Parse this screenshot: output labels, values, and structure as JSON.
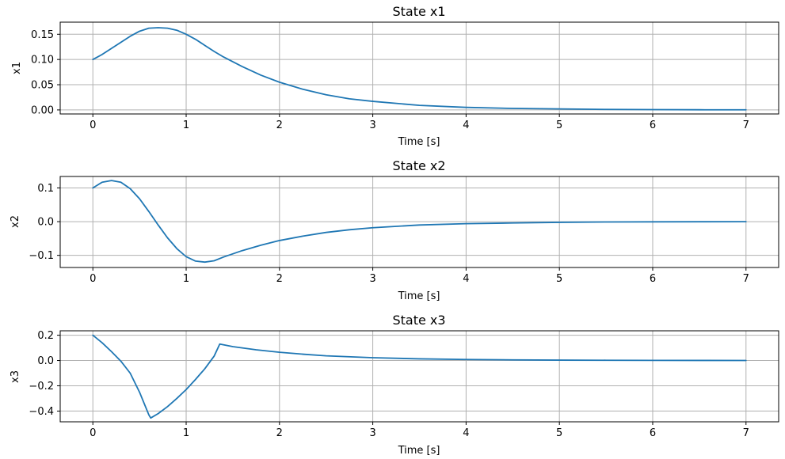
{
  "chart_data": [
    {
      "type": "line",
      "title": "State x1",
      "xlabel": "Time [s]",
      "ylabel": "x1",
      "xlim": [
        -0.35,
        7.35
      ],
      "ylim": [
        -0.008,
        0.174
      ],
      "xticks": [
        0,
        1,
        2,
        3,
        4,
        5,
        6,
        7
      ],
      "xtick_labels": [
        "0",
        "1",
        "2",
        "3",
        "4",
        "5",
        "6",
        "7"
      ],
      "yticks": [
        0.0,
        0.05,
        0.1,
        0.15
      ],
      "ytick_labels": [
        "0.00",
        "0.05",
        "0.10",
        "0.15"
      ],
      "grid": true,
      "color": "#1f77b4",
      "series": [
        {
          "x": [
            0,
            0.1,
            0.2,
            0.3,
            0.4,
            0.5,
            0.6,
            0.7,
            0.8,
            0.9,
            1.0,
            1.1,
            1.2,
            1.3,
            1.4,
            1.6,
            1.8,
            2.0,
            2.25,
            2.5,
            2.75,
            3.0,
            3.5,
            4.0,
            4.5,
            5.0,
            5.5,
            6.0,
            6.5,
            7.0
          ],
          "y": [
            0.1,
            0.11,
            0.122,
            0.134,
            0.146,
            0.156,
            0.162,
            0.163,
            0.162,
            0.158,
            0.15,
            0.14,
            0.128,
            0.116,
            0.105,
            0.086,
            0.069,
            0.055,
            0.041,
            0.03,
            0.022,
            0.017,
            0.009,
            0.005,
            0.003,
            0.002,
            0.001,
            0.0006,
            0.0003,
            0.0002
          ]
        }
      ]
    },
    {
      "type": "line",
      "title": "State x2",
      "xlabel": "Time [s]",
      "ylabel": "x2",
      "xlim": [
        -0.35,
        7.35
      ],
      "ylim": [
        -0.136,
        0.134
      ],
      "xticks": [
        0,
        1,
        2,
        3,
        4,
        5,
        6,
        7
      ],
      "xtick_labels": [
        "0",
        "1",
        "2",
        "3",
        "4",
        "5",
        "6",
        "7"
      ],
      "yticks": [
        -0.1,
        0.0,
        0.1
      ],
      "ytick_labels": [
        "−0.1",
        "0.0",
        "0.1"
      ],
      "grid": true,
      "color": "#1f77b4",
      "series": [
        {
          "x": [
            0,
            0.1,
            0.2,
            0.3,
            0.4,
            0.5,
            0.6,
            0.7,
            0.8,
            0.9,
            1.0,
            1.1,
            1.2,
            1.3,
            1.4,
            1.6,
            1.8,
            2.0,
            2.25,
            2.5,
            2.75,
            3.0,
            3.5,
            4.0,
            4.5,
            5.0,
            5.5,
            6.0,
            6.5,
            7.0
          ],
          "y": [
            0.1,
            0.117,
            0.122,
            0.117,
            0.098,
            0.068,
            0.03,
            -0.01,
            -0.048,
            -0.08,
            -0.104,
            -0.117,
            -0.12,
            -0.116,
            -0.105,
            -0.086,
            -0.07,
            -0.056,
            -0.043,
            -0.032,
            -0.024,
            -0.018,
            -0.01,
            -0.006,
            -0.004,
            -0.002,
            -0.001,
            -0.0006,
            -0.0003,
            -0.0002
          ]
        }
      ]
    },
    {
      "type": "line",
      "title": "State x3",
      "xlabel": "Time [s]",
      "ylabel": "x3",
      "xlim": [
        -0.35,
        7.35
      ],
      "ylim": [
        -0.485,
        0.235
      ],
      "xticks": [
        0,
        1,
        2,
        3,
        4,
        5,
        6,
        7
      ],
      "xtick_labels": [
        "0",
        "1",
        "2",
        "3",
        "4",
        "5",
        "6",
        "7"
      ],
      "yticks": [
        -0.4,
        -0.2,
        0.0,
        0.2
      ],
      "ytick_labels": [
        "−0.4",
        "−0.2",
        "0.0",
        "0.2"
      ],
      "grid": true,
      "color": "#1f77b4",
      "series": [
        {
          "x": [
            0,
            0.1,
            0.2,
            0.3,
            0.4,
            0.5,
            0.6,
            0.62,
            0.7,
            0.8,
            0.9,
            1.0,
            1.1,
            1.2,
            1.3,
            1.36,
            1.5,
            1.75,
            2.0,
            2.25,
            2.5,
            3.0,
            3.5,
            4.0,
            4.5,
            5.0,
            5.5,
            6.0,
            6.5,
            7.0
          ],
          "y": [
            0.2,
            0.14,
            0.07,
            -0.005,
            -0.1,
            -0.25,
            -0.43,
            -0.455,
            -0.42,
            -0.365,
            -0.3,
            -0.23,
            -0.15,
            -0.065,
            0.035,
            0.13,
            0.11,
            0.085,
            0.065,
            0.05,
            0.037,
            0.022,
            0.013,
            0.008,
            0.005,
            0.003,
            0.002,
            0.001,
            0.0005,
            0.0003
          ]
        }
      ]
    }
  ]
}
